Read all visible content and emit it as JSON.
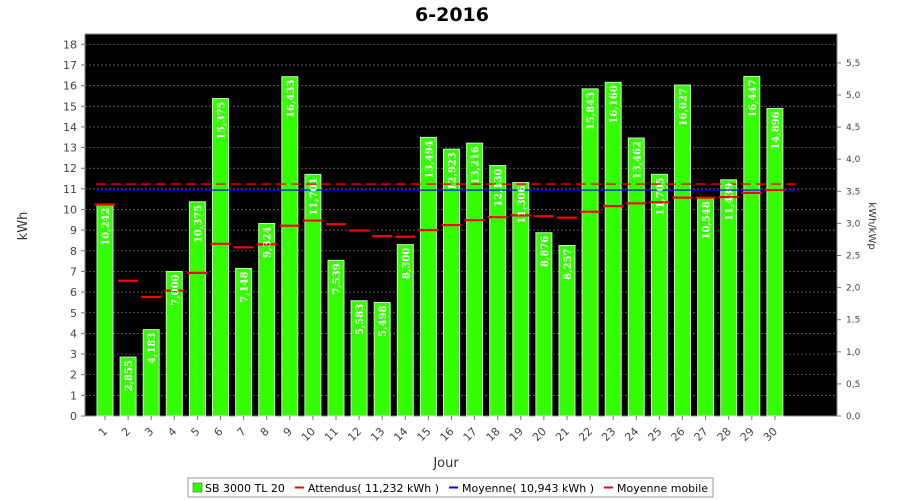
{
  "chart_data": {
    "type": "bar",
    "title": "6-2016",
    "xlabel": "Jour",
    "ylabel": "kWh",
    "y2label": "kWh/kWp",
    "ylim": [
      0,
      18.5
    ],
    "y2lim": [
      0,
      5.95
    ],
    "yticks": [
      "0",
      "1",
      "2",
      "3",
      "4",
      "5",
      "6",
      "7",
      "8",
      "9",
      "10",
      "11",
      "12",
      "13",
      "14",
      "15",
      "16",
      "17",
      "18"
    ],
    "y2ticks": [
      "0,0",
      "0,5",
      "1,0",
      "1,5",
      "2,0",
      "2,5",
      "3,0",
      "3,5",
      "4,0",
      "4,5",
      "5,0",
      "5,5"
    ],
    "grid": true,
    "legend_position": "bottom",
    "categories": [
      "1",
      "2",
      "3",
      "4",
      "5",
      "6",
      "7",
      "8",
      "9",
      "10",
      "11",
      "12",
      "13",
      "14",
      "15",
      "16",
      "17",
      "18",
      "19",
      "20",
      "21",
      "22",
      "23",
      "24",
      "25",
      "26",
      "27",
      "28",
      "29",
      "30"
    ],
    "series": [
      {
        "name": "SB 3000 TL 20",
        "color": "#33ff00",
        "values": [
          10.242,
          2.855,
          4.183,
          7.0,
          10.375,
          15.375,
          7.148,
          9.324,
          16.433,
          11.701,
          7.539,
          5.583,
          5.498,
          8.3,
          13.494,
          12.923,
          13.216,
          12.13,
          11.306,
          8.876,
          8.257,
          15.843,
          16.16,
          13.462,
          11.705,
          16.027,
          10.548,
          11.439,
          16.447,
          14.896
        ],
        "labels": [
          "10,242",
          "2,855",
          "4,183",
          "7,000",
          "10,375",
          "15,375",
          "7,148",
          "9,324",
          "16,433",
          "11,701",
          "7,539",
          "5,583",
          "5,498",
          "8,300",
          "13,494",
          "12,923",
          "13,216",
          "12,130",
          "11,306",
          "8,876",
          "8,257",
          "15,843",
          "16,160",
          "13,462",
          "11,705",
          "16,027",
          "10,548",
          "11,439",
          "16,447",
          "14,896"
        ]
      },
      {
        "name": "Attendus( 11,232 kWh )",
        "color": "#ff0000",
        "value": 11.232
      },
      {
        "name": "Moyenne( 10,943 kWh )",
        "color": "#0000ff",
        "value": 10.943
      },
      {
        "name": "Moyenne mobile",
        "color": "#ff0000",
        "values": [
          10.242,
          6.549,
          5.76,
          6.07,
          6.931,
          8.338,
          8.168,
          8.313,
          9.215,
          9.464,
          9.289,
          8.98,
          8.712,
          8.682,
          9.003,
          9.248,
          9.482,
          9.629,
          9.717,
          9.675,
          9.607,
          9.89,
          10.163,
          10.3,
          10.356,
          10.574,
          10.573,
          10.604,
          10.805,
          10.943
        ]
      }
    ]
  }
}
